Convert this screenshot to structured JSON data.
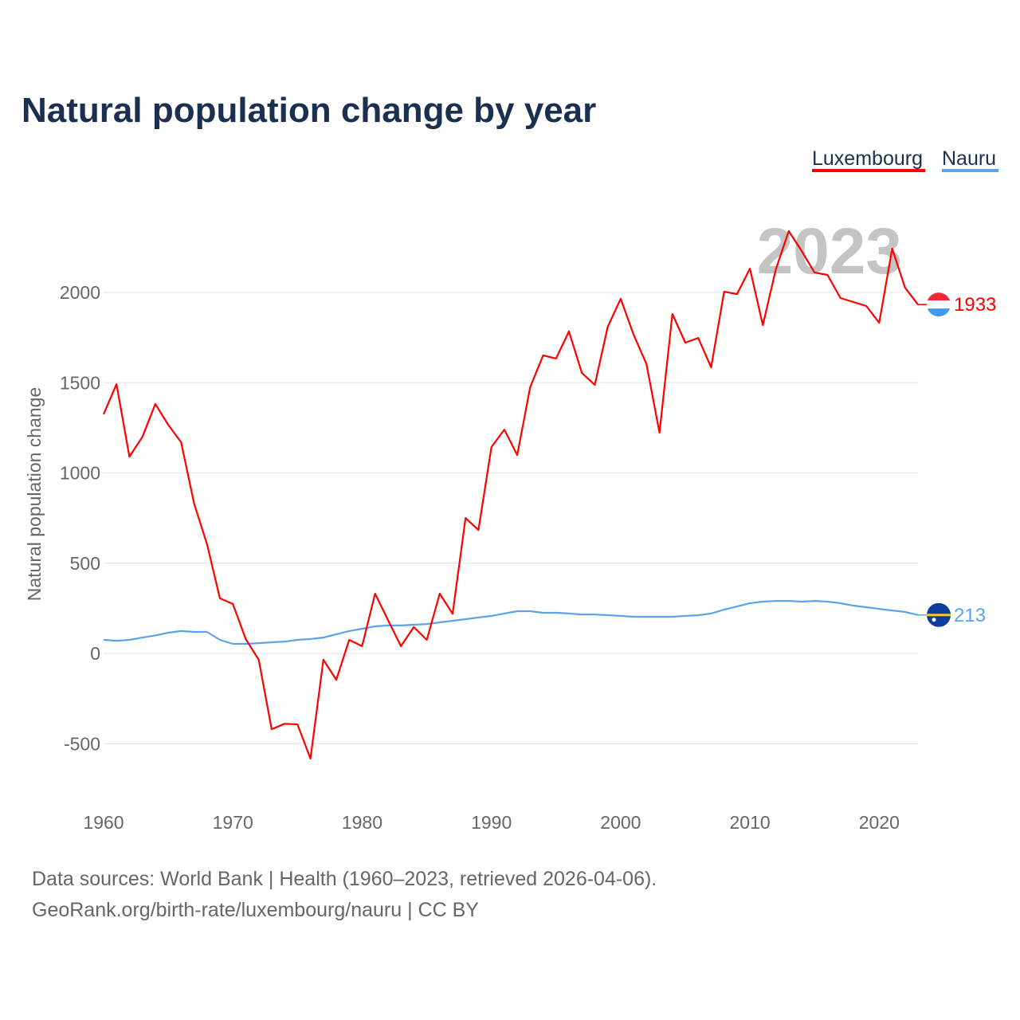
{
  "chart_data": {
    "type": "line",
    "title": "Natural population change by year",
    "xlabel": "",
    "ylabel": "Natural population change",
    "xlim": [
      1960,
      2023
    ],
    "ylim": [
      -800,
      2600
    ],
    "grid": true,
    "legend_position": "top-right",
    "x_ticks": [
      "1960",
      "1970",
      "1980",
      "1990",
      "2000",
      "2010",
      "2020"
    ],
    "y_ticks": [
      "-500",
      "0",
      "500",
      "1000",
      "1500",
      "2000"
    ],
    "year_watermark": "2023",
    "x": [
      1960,
      1961,
      1962,
      1963,
      1964,
      1965,
      1966,
      1967,
      1968,
      1969,
      1970,
      1971,
      1972,
      1973,
      1974,
      1975,
      1976,
      1977,
      1978,
      1979,
      1980,
      1981,
      1982,
      1983,
      1984,
      1985,
      1986,
      1987,
      1988,
      1989,
      1990,
      1991,
      1992,
      1993,
      1994,
      1995,
      1996,
      1997,
      1998,
      1999,
      2000,
      2001,
      2002,
      2003,
      2004,
      2005,
      2006,
      2007,
      2008,
      2009,
      2010,
      2011,
      2012,
      2013,
      2014,
      2015,
      2016,
      2017,
      2018,
      2019,
      2020,
      2021,
      2022,
      2023
    ],
    "series": [
      {
        "name": "Luxembourg",
        "color": "#ff0000",
        "end_label": "1933",
        "values": [
          1325,
          1492,
          1090,
          1200,
          1382,
          1267,
          1170,
          830,
          605,
          305,
          274,
          80,
          -35,
          -420,
          -390,
          -393,
          -583,
          -35,
          -146,
          75,
          40,
          331,
          185,
          40,
          146,
          75,
          331,
          220,
          750,
          684,
          1143,
          1240,
          1099,
          1475,
          1651,
          1634,
          1784,
          1554,
          1488,
          1810,
          1965,
          1766,
          1603,
          1223,
          1881,
          1722,
          1748,
          1585,
          2004,
          1991,
          2132,
          1819,
          2128,
          2340,
          2230,
          2110,
          2097,
          1969,
          1947,
          1925,
          1832,
          2243,
          2026,
          1933
        ]
      },
      {
        "name": "Nauru",
        "color": "#5ba4e8",
        "end_label": "213",
        "values": [
          75,
          70,
          75,
          88,
          100,
          115,
          124,
          119,
          119,
          75,
          53,
          53,
          57,
          62,
          66,
          75,
          80,
          88,
          106,
          124,
          137,
          150,
          155,
          155,
          159,
          163,
          172,
          181,
          190,
          199,
          208,
          221,
          234,
          234,
          225,
          225,
          221,
          216,
          216,
          212,
          208,
          203,
          203,
          203,
          203,
          208,
          212,
          221,
          243,
          260,
          278,
          287,
          291,
          291,
          287,
          291,
          287,
          278,
          265,
          256,
          247,
          238,
          230,
          213
        ]
      }
    ]
  },
  "footer": {
    "line1": "Data sources: World Bank | Health (1960–2023, retrieved 2026-04-06).",
    "line2": "GeoRank.org/birth-rate/luxembourg/nauru | CC BY"
  }
}
